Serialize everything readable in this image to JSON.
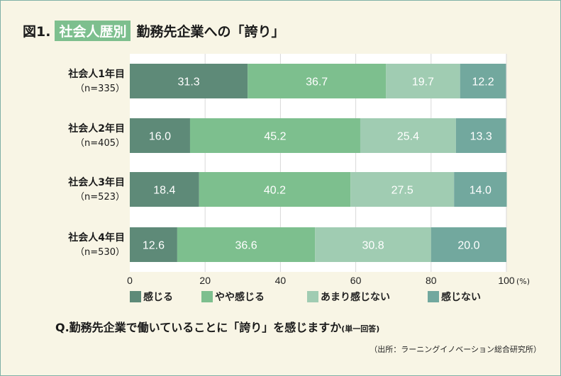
{
  "title": {
    "prefix": "図1.",
    "highlight": "社会人歴別",
    "main": "勤務先企業への「誇り」"
  },
  "chart_data": {
    "type": "bar",
    "stacked": true,
    "orientation": "horizontal",
    "categories": [
      "社会人1年目",
      "社会人2年目",
      "社会人3年目",
      "社会人4年目"
    ],
    "sample_sizes": [
      "（n=335）",
      "（n=405）",
      "（n=523）",
      "（n=530）"
    ],
    "series": [
      {
        "name": "感じる",
        "color": "#5e8a78",
        "values": [
          31.3,
          16.0,
          18.4,
          12.6
        ]
      },
      {
        "name": "やや感じる",
        "color": "#7dbf8e",
        "values": [
          36.7,
          45.2,
          40.2,
          36.6
        ]
      },
      {
        "name": "あまり感じない",
        "color": "#a0ccb2",
        "values": [
          19.7,
          25.4,
          27.5,
          30.8
        ]
      },
      {
        "name": "感じない",
        "color": "#72a89e",
        "values": [
          12.2,
          13.3,
          14.0,
          20.0
        ]
      }
    ],
    "xlim": [
      0,
      100
    ],
    "xticks": [
      "0",
      "20",
      "40",
      "60",
      "80",
      "100"
    ],
    "xunit": "(%)",
    "grid": true,
    "legend": "bottom"
  },
  "question": "Q.勤務先企業で働いていることに「誇り」を感じますか",
  "question_note": "(単一回答)",
  "source": "（出所：ラーニングイノベーション総合研究所）"
}
